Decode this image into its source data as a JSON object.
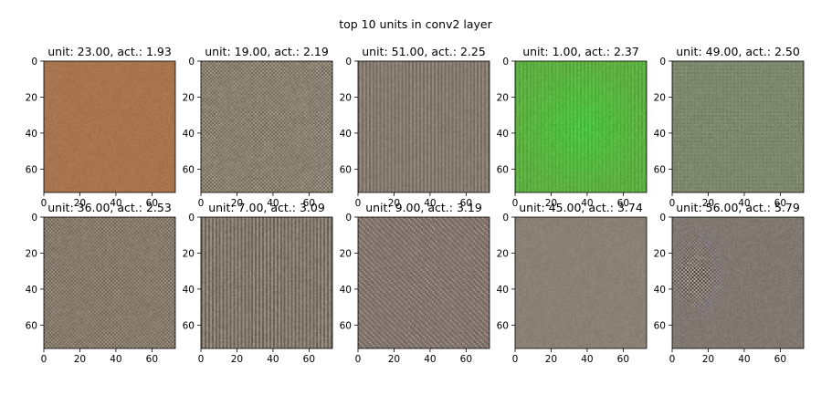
{
  "figure": {
    "title": "top 10 units in conv2 layer"
  },
  "chart_data": {
    "type": "heatmap",
    "title": "top 10 units in conv2 layer",
    "layout": {
      "rows": 2,
      "cols": 5
    },
    "axes": {
      "xlim": [
        0,
        73
      ],
      "ylim": [
        73,
        0
      ],
      "xticks": [
        "0",
        "20",
        "40",
        "60"
      ],
      "yticks": [
        "0",
        "20",
        "40",
        "60"
      ]
    },
    "panels": [
      {
        "title": "unit: 23.00, act.: 1.93",
        "unit": 23,
        "activation": 1.93,
        "base_color": "#a8744e",
        "pattern": "smooth",
        "strength": 4
      },
      {
        "title": "unit: 19.00, act.: 2.19",
        "unit": 19,
        "activation": 2.19,
        "base_color": "#8a8072",
        "pattern": "checker",
        "strength": 26
      },
      {
        "title": "unit: 51.00, act.: 2.25",
        "unit": 51,
        "activation": 2.25,
        "base_color": "#847a70",
        "pattern": "stripes",
        "strength": 18
      },
      {
        "title": "unit: 1.00, act.: 2.37",
        "unit": 1,
        "activation": 2.37,
        "base_color": "#58b84a",
        "pattern": "green-glow",
        "strength": 14
      },
      {
        "title": "unit: 49.00, act.: 2.50",
        "unit": 49,
        "activation": 2.5,
        "base_color": "#7a8468",
        "pattern": "grid",
        "strength": 12
      },
      {
        "title": "unit: 36.00, act.: 2.53",
        "unit": 36,
        "activation": 2.53,
        "base_color": "#857a6c",
        "pattern": "checker",
        "strength": 22
      },
      {
        "title": "unit: 7.00, act.: 3.09",
        "unit": 7,
        "activation": 3.09,
        "base_color": "#82786c",
        "pattern": "stripes",
        "strength": 28
      },
      {
        "title": "unit: 9.00, act.: 3.19",
        "unit": 9,
        "activation": 3.19,
        "base_color": "#847870",
        "pattern": "diagonal",
        "strength": 26
      },
      {
        "title": "unit: 45.00, act.: 3.74",
        "unit": 45,
        "activation": 3.74,
        "base_color": "#8a8074",
        "pattern": "smooth",
        "strength": 5
      },
      {
        "title": "unit: 56.00, act.: 5.79",
        "unit": 56,
        "activation": 5.79,
        "base_color": "#807870",
        "pattern": "blob",
        "strength": 60
      }
    ]
  }
}
